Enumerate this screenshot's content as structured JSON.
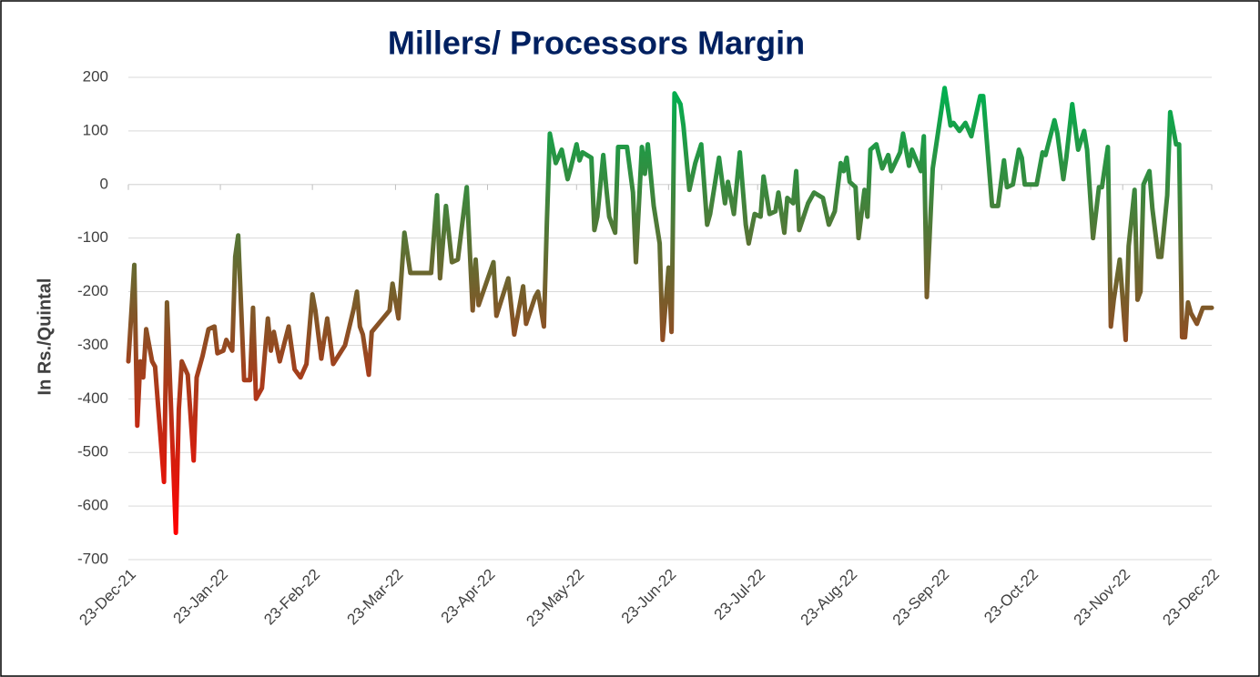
{
  "chart_data": {
    "type": "line",
    "title": "Millers/ Processors Margin",
    "y_label": "In Rs./Quintal",
    "gradient_colors": [
      "#ff0000",
      "#00b050"
    ],
    "grid": true,
    "xlim": [
      "2021-12-23",
      "2022-12-23"
    ],
    "xticks": [
      {
        "value": "2021-12-23",
        "label": "23-Dec-21"
      },
      {
        "value": "2022-01-23",
        "label": "23-Jan-22"
      },
      {
        "value": "2022-02-23",
        "label": "23-Feb-22"
      },
      {
        "value": "2022-03-23",
        "label": "23-Mar-22"
      },
      {
        "value": "2022-04-23",
        "label": "23-Apr-22"
      },
      {
        "value": "2022-05-23",
        "label": "23-May-22"
      },
      {
        "value": "2022-06-23",
        "label": "23-Jun-22"
      },
      {
        "value": "2022-07-23",
        "label": "23-Jul-22"
      },
      {
        "value": "2022-08-23",
        "label": "23-Aug-22"
      },
      {
        "value": "2022-09-23",
        "label": "23-Sep-22"
      },
      {
        "value": "2022-10-23",
        "label": "23-Oct-22"
      },
      {
        "value": "2022-11-23",
        "label": "23-Nov-22"
      },
      {
        "value": "2022-12-23",
        "label": "23-Dec-22"
      }
    ],
    "ylim": [
      -700,
      200
    ],
    "yticks": [
      200,
      100,
      0,
      -100,
      -200,
      -300,
      -400,
      -500,
      -600,
      -700
    ],
    "x": [
      "2021-12-23",
      "2021-12-25",
      "2021-12-26",
      "2021-12-27",
      "2021-12-28",
      "2021-12-29",
      "2021-12-31",
      "2022-01-01",
      "2022-01-04",
      "2022-01-05",
      "2022-01-08",
      "2022-01-09",
      "2022-01-10",
      "2022-01-12",
      "2022-01-14",
      "2022-01-15",
      "2022-01-17",
      "2022-01-19",
      "2022-01-21",
      "2022-01-22",
      "2022-01-24",
      "2022-01-25",
      "2022-01-27",
      "2022-01-28",
      "2022-01-29",
      "2022-01-31",
      "2022-02-02",
      "2022-02-03",
      "2022-02-04",
      "2022-02-06",
      "2022-02-08",
      "2022-02-09",
      "2022-02-10",
      "2022-02-12",
      "2022-02-15",
      "2022-02-17",
      "2022-02-19",
      "2022-02-21",
      "2022-02-23",
      "2022-02-24",
      "2022-02-26",
      "2022-02-28",
      "2022-03-02",
      "2022-03-06",
      "2022-03-09",
      "2022-03-10",
      "2022-03-11",
      "2022-03-12",
      "2022-03-14",
      "2022-03-15",
      "2022-03-21",
      "2022-03-22",
      "2022-03-24",
      "2022-03-26",
      "2022-03-28",
      "2022-04-04",
      "2022-04-06",
      "2022-04-07",
      "2022-04-09",
      "2022-04-11",
      "2022-04-13",
      "2022-04-16",
      "2022-04-18",
      "2022-04-19",
      "2022-04-20",
      "2022-04-25",
      "2022-04-26",
      "2022-04-30",
      "2022-05-02",
      "2022-05-05",
      "2022-05-06",
      "2022-05-09",
      "2022-05-10",
      "2022-05-12",
      "2022-05-13",
      "2022-05-14",
      "2022-05-16",
      "2022-05-18",
      "2022-05-20",
      "2022-05-21",
      "2022-05-23",
      "2022-05-24",
      "2022-05-25",
      "2022-05-28",
      "2022-05-29",
      "2022-05-30",
      "2022-06-01",
      "2022-06-02",
      "2022-06-03",
      "2022-06-05",
      "2022-06-06",
      "2022-06-09",
      "2022-06-11",
      "2022-06-12",
      "2022-06-14",
      "2022-06-15",
      "2022-06-16",
      "2022-06-18",
      "2022-06-20",
      "2022-06-21",
      "2022-06-23",
      "2022-06-24",
      "2022-06-25",
      "2022-06-27",
      "2022-06-28",
      "2022-06-30",
      "2022-07-02",
      "2022-07-04",
      "2022-07-06",
      "2022-07-07",
      "2022-07-10",
      "2022-07-12",
      "2022-07-13",
      "2022-07-15",
      "2022-07-17",
      "2022-07-19",
      "2022-07-20",
      "2022-07-22",
      "2022-07-24",
      "2022-07-25",
      "2022-07-27",
      "2022-07-29",
      "2022-07-30",
      "2022-08-01",
      "2022-08-02",
      "2022-08-04",
      "2022-08-05",
      "2022-08-06",
      "2022-08-09",
      "2022-08-11",
      "2022-08-14",
      "2022-08-16",
      "2022-08-18",
      "2022-08-20",
      "2022-08-21",
      "2022-08-22",
      "2022-08-23",
      "2022-08-25",
      "2022-08-26",
      "2022-08-28",
      "2022-08-29",
      "2022-08-30",
      "2022-09-01",
      "2022-09-03",
      "2022-09-05",
      "2022-09-06",
      "2022-09-09",
      "2022-09-10",
      "2022-09-12",
      "2022-09-13",
      "2022-09-16",
      "2022-09-17",
      "2022-09-18",
      "2022-09-20",
      "2022-09-24",
      "2022-09-26",
      "2022-09-27",
      "2022-09-29",
      "2022-10-01",
      "2022-10-03",
      "2022-10-06",
      "2022-10-07",
      "2022-10-10",
      "2022-10-12",
      "2022-10-14",
      "2022-10-15",
      "2022-10-17",
      "2022-10-19",
      "2022-10-20",
      "2022-10-21",
      "2022-10-25",
      "2022-10-27",
      "2022-10-28",
      "2022-10-31",
      "2022-11-01",
      "2022-11-03",
      "2022-11-04",
      "2022-11-06",
      "2022-11-08",
      "2022-11-10",
      "2022-11-11",
      "2022-11-13",
      "2022-11-15",
      "2022-11-16",
      "2022-11-18",
      "2022-11-19",
      "2022-11-20",
      "2022-11-22",
      "2022-11-24",
      "2022-11-25",
      "2022-11-27",
      "2022-11-28",
      "2022-11-29",
      "2022-11-30",
      "2022-12-02",
      "2022-12-03",
      "2022-12-05",
      "2022-12-06",
      "2022-12-08",
      "2022-12-09",
      "2022-12-11",
      "2022-12-12",
      "2022-12-13",
      "2022-12-14",
      "2022-12-15",
      "2022-12-16",
      "2022-12-18",
      "2022-12-20",
      "2022-12-23"
    ],
    "values": [
      -330,
      -150,
      -450,
      -330,
      -360,
      -270,
      -330,
      -340,
      -555,
      -220,
      -650,
      -420,
      -330,
      -355,
      -515,
      -360,
      -320,
      -270,
      -265,
      -315,
      -310,
      -290,
      -310,
      -135,
      -95,
      -365,
      -365,
      -230,
      -400,
      -380,
      -250,
      -310,
      -275,
      -330,
      -265,
      -345,
      -360,
      -335,
      -205,
      -235,
      -325,
      -250,
      -335,
      -300,
      -230,
      -200,
      -265,
      -280,
      -355,
      -275,
      -235,
      -185,
      -250,
      -90,
      -165,
      -165,
      -20,
      -175,
      -40,
      -145,
      -140,
      -5,
      -235,
      -140,
      -225,
      -145,
      -245,
      -175,
      -280,
      -190,
      -260,
      -210,
      -200,
      -265,
      -70,
      95,
      40,
      65,
      10,
      30,
      75,
      45,
      60,
      50,
      -85,
      -60,
      55,
      -5,
      -60,
      -90,
      70,
      70,
      -15,
      -145,
      70,
      20,
      75,
      -40,
      -110,
      -290,
      -155,
      -275,
      170,
      150,
      110,
      -10,
      40,
      75,
      -75,
      -55,
      50,
      -35,
      5,
      -55,
      60,
      -75,
      -110,
      -55,
      -60,
      15,
      -55,
      -50,
      -15,
      -90,
      -25,
      -35,
      25,
      -85,
      -35,
      -15,
      -25,
      -75,
      -50,
      40,
      25,
      50,
      5,
      -5,
      -100,
      -10,
      -60,
      65,
      75,
      30,
      55,
      25,
      60,
      95,
      35,
      65,
      25,
      90,
      -210,
      30,
      180,
      110,
      115,
      100,
      115,
      90,
      165,
      165,
      -40,
      -40,
      45,
      -5,
      0,
      65,
      50,
      0,
      0,
      60,
      55,
      120,
      95,
      10,
      50,
      150,
      65,
      100,
      65,
      -100,
      -5,
      -5,
      70,
      -265,
      -215,
      -140,
      -290,
      -115,
      -10,
      -215,
      -200,
      0,
      25,
      -45,
      -135,
      -135,
      -20,
      135,
      75,
      75,
      -285,
      -285,
      -220,
      -240,
      -260,
      -230,
      -230
    ]
  }
}
